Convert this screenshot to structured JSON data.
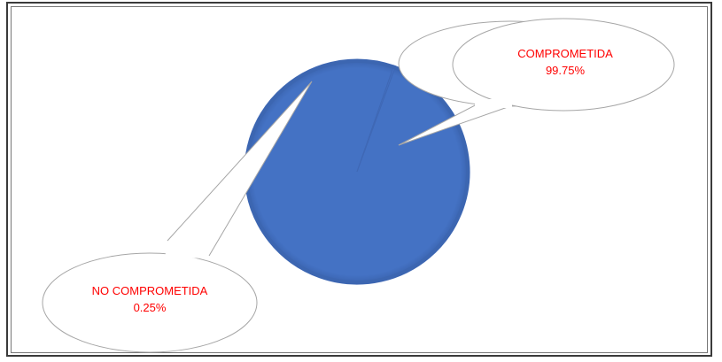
{
  "chart_data": {
    "type": "pie",
    "title": "",
    "slices": [
      {
        "label": "COMPROMETIDA",
        "value": 99.75,
        "value_label": "99.75%",
        "color": "#4472C4"
      },
      {
        "label": "NO COMPROMETIDA",
        "value": 0.25,
        "value_label": "0.25%",
        "color": "#4472C4"
      }
    ],
    "label_color": "#FF0000",
    "legend": "none",
    "data_labels": "callouts"
  }
}
